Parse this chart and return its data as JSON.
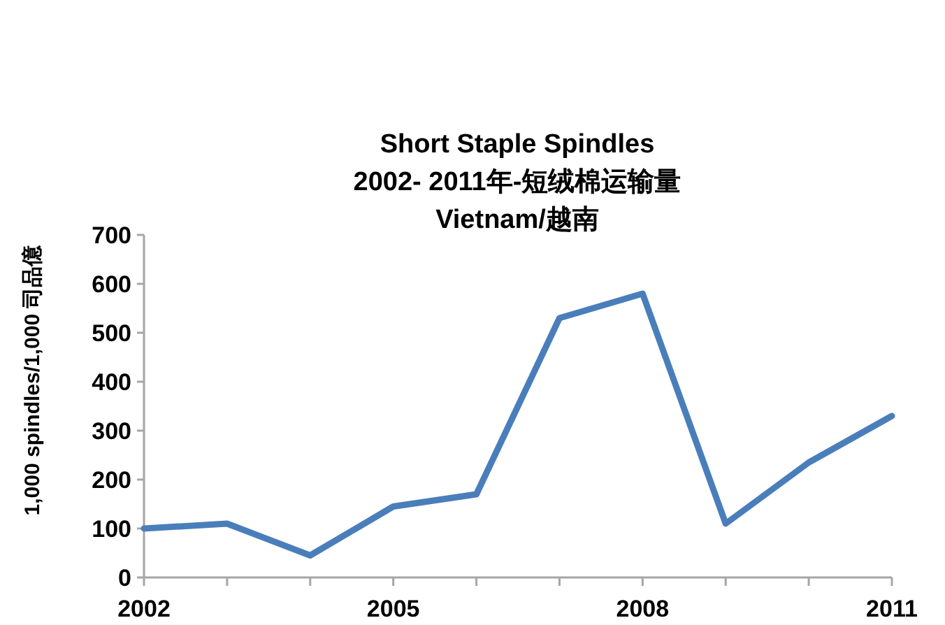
{
  "chart_data": {
    "type": "line",
    "title": "Short Staple Spindles\n2002- 2011年-短绒棉运输量\nVietnam/越南",
    "ylabel": "1,000 spindles/1,000 司品億",
    "x": [
      2002,
      2003,
      2004,
      2005,
      2006,
      2007,
      2008,
      2009,
      2010,
      2011
    ],
    "series": [
      {
        "color": "#4a7ebb",
        "values": [
          100,
          110,
          45,
          145,
          170,
          530,
          580,
          110,
          235,
          330
        ]
      }
    ],
    "xlim": [
      2002,
      2011
    ],
    "xticks": [
      2002,
      {
        "value": 2003,
        "label": null
      },
      {
        "value": 2004,
        "label": null
      },
      2005,
      {
        "value": 2006,
        "label": null
      },
      {
        "value": 2007,
        "label": null
      },
      2008,
      {
        "value": 2009,
        "label": null
      },
      {
        "value": 2010,
        "label": null
      },
      2011
    ],
    "ylim": [
      0,
      700
    ],
    "yticks": [
      0,
      100,
      200,
      300,
      400,
      500,
      600,
      700
    ],
    "grid": false,
    "marker": "none",
    "line_style": "solid"
  }
}
